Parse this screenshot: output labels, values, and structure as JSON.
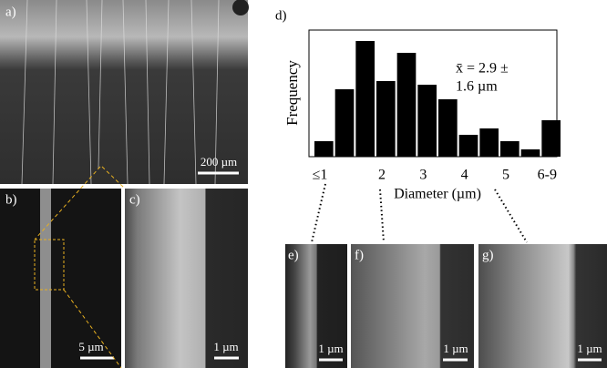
{
  "chart_data": {
    "type": "bar",
    "panel_label": "d)",
    "xlabel": "Diameter (µm)",
    "ylabel": "Frequency",
    "categories": [
      "≤1",
      null,
      null,
      "2",
      null,
      "3",
      null,
      "4",
      null,
      "5",
      null,
      "6-9"
    ],
    "values": [
      17,
      74,
      127,
      83,
      114,
      79,
      63,
      24,
      31,
      17,
      8,
      40
    ],
    "color": "#000000",
    "ylim": [
      0,
      139
    ],
    "annotation": [
      "x̄ = 2.9 ±",
      "1.6 µm"
    ]
  },
  "panels": {
    "a": {
      "label": "a)",
      "scale": "200 µm"
    },
    "b": {
      "label": "b)",
      "scale": "5 µm"
    },
    "c": {
      "label": "c)",
      "scale": "1 µm"
    },
    "e": {
      "label": "e)",
      "scale": "1 µm"
    },
    "f": {
      "label": "f)",
      "scale": "1 µm"
    },
    "g": {
      "label": "g)",
      "scale": "1 µm"
    }
  }
}
